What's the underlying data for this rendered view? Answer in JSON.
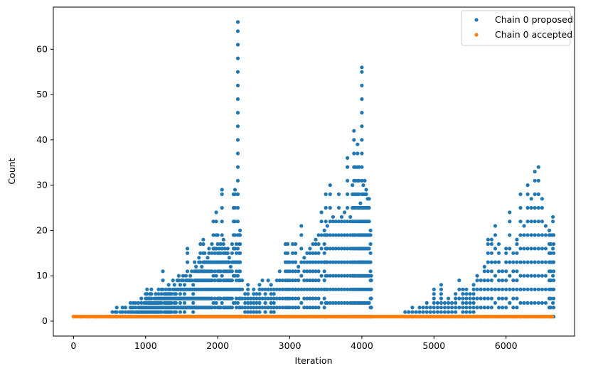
{
  "chart_data": {
    "type": "scatter",
    "title": "",
    "xlabel": "Iteration",
    "ylabel": "Count",
    "xlim": [
      -280,
      6950
    ],
    "ylim": [
      -3.3,
      69.3
    ],
    "xticks": [
      0,
      1000,
      2000,
      3000,
      4000,
      5000,
      6000
    ],
    "yticks": [
      0,
      10,
      20,
      30,
      40,
      50,
      60
    ],
    "xtick_labels": [
      "0",
      "1000",
      "2000",
      "3000",
      "4000",
      "5000",
      "6000"
    ],
    "ytick_labels": [
      "0",
      "10",
      "20",
      "30",
      "40",
      "50",
      "60"
    ],
    "grid": false,
    "legend_position": "top-right",
    "series": [
      {
        "name": "Chain 0 proposed",
        "color": "#1f77b4",
        "points": [
          [
            0,
            1
          ],
          [
            100,
            1
          ],
          [
            200,
            1
          ],
          [
            300,
            1
          ],
          [
            400,
            1
          ],
          [
            500,
            1
          ],
          [
            540,
            2
          ],
          [
            580,
            2
          ],
          [
            600,
            3
          ],
          [
            650,
            2
          ],
          [
            680,
            3
          ],
          [
            720,
            3
          ],
          [
            760,
            2
          ],
          [
            790,
            4
          ],
          [
            810,
            3
          ],
          [
            830,
            4
          ],
          [
            860,
            4
          ],
          [
            880,
            2
          ],
          [
            900,
            4
          ],
          [
            920,
            3
          ],
          [
            940,
            5
          ],
          [
            960,
            3
          ],
          [
            980,
            4
          ],
          [
            1000,
            6
          ],
          [
            1020,
            7
          ],
          [
            1040,
            5
          ],
          [
            1060,
            6
          ],
          [
            1080,
            7
          ],
          [
            1100,
            4
          ],
          [
            1120,
            5
          ],
          [
            1140,
            6
          ],
          [
            1160,
            5
          ],
          [
            1180,
            7
          ],
          [
            1200,
            5
          ],
          [
            1220,
            7
          ],
          [
            1240,
            11
          ],
          [
            1260,
            6
          ],
          [
            1280,
            7
          ],
          [
            1300,
            6
          ],
          [
            1320,
            8
          ],
          [
            1340,
            7
          ],
          [
            1360,
            6
          ],
          [
            1380,
            9
          ],
          [
            1400,
            8
          ],
          [
            1420,
            7
          ],
          [
            1440,
            9
          ],
          [
            1460,
            10
          ],
          [
            1480,
            8
          ],
          [
            1500,
            9
          ],
          [
            1520,
            10
          ],
          [
            1540,
            8
          ],
          [
            1560,
            10
          ],
          [
            1580,
            16
          ],
          [
            1600,
            9
          ],
          [
            1620,
            10
          ],
          [
            1640,
            11
          ],
          [
            1660,
            8
          ],
          [
            1680,
            13
          ],
          [
            1700,
            12
          ],
          [
            1720,
            11
          ],
          [
            1740,
            14
          ],
          [
            1760,
            17
          ],
          [
            1780,
            12
          ],
          [
            1800,
            18
          ],
          [
            1820,
            15
          ],
          [
            1840,
            13
          ],
          [
            1860,
            14
          ],
          [
            1880,
            16
          ],
          [
            1900,
            13
          ],
          [
            1920,
            17
          ],
          [
            1940,
            22
          ],
          [
            1960,
            16
          ],
          [
            1980,
            24
          ],
          [
            2000,
            19
          ],
          [
            2020,
            16
          ],
          [
            2040,
            17
          ],
          [
            2060,
            29
          ],
          [
            2080,
            18
          ],
          [
            2100,
            16
          ],
          [
            2120,
            15
          ],
          [
            2140,
            16
          ],
          [
            2160,
            14
          ],
          [
            2180,
            12
          ],
          [
            2200,
            17
          ],
          [
            2220,
            28
          ],
          [
            2240,
            29
          ],
          [
            2260,
            17
          ],
          [
            2280,
            66
          ],
          [
            2300,
            19
          ],
          [
            2310,
            20
          ],
          [
            2340,
            9
          ],
          [
            2380,
            6
          ],
          [
            2420,
            8
          ],
          [
            2460,
            5
          ],
          [
            2500,
            7
          ],
          [
            2540,
            6
          ],
          [
            2580,
            8
          ],
          [
            2620,
            9
          ],
          [
            2660,
            7
          ],
          [
            2700,
            9
          ],
          [
            2740,
            8
          ],
          [
            2780,
            7
          ],
          [
            2820,
            9
          ],
          [
            2860,
            11
          ],
          [
            2900,
            9
          ],
          [
            2940,
            17
          ],
          [
            2970,
            17
          ],
          [
            3000,
            13
          ],
          [
            3040,
            17
          ],
          [
            3080,
            17
          ],
          [
            3120,
            12
          ],
          [
            3160,
            21
          ],
          [
            3200,
            14
          ],
          [
            3240,
            15
          ],
          [
            3280,
            16
          ],
          [
            3320,
            17
          ],
          [
            3360,
            18
          ],
          [
            3400,
            19
          ],
          [
            3440,
            24
          ],
          [
            3480,
            20
          ],
          [
            3500,
            28
          ],
          [
            3520,
            21
          ],
          [
            3560,
            30
          ],
          [
            3600,
            23
          ],
          [
            3640,
            22
          ],
          [
            3680,
            28
          ],
          [
            3720,
            23
          ],
          [
            3760,
            24
          ],
          [
            3800,
            36
          ],
          [
            3840,
            23
          ],
          [
            3870,
            30
          ],
          [
            3890,
            42
          ],
          [
            3910,
            34
          ],
          [
            3940,
            39
          ],
          [
            3960,
            34
          ],
          [
            3980,
            26
          ],
          [
            4000,
            56
          ],
          [
            4020,
            30
          ],
          [
            4040,
            31
          ],
          [
            4060,
            29
          ],
          [
            4080,
            27
          ],
          [
            4100,
            27
          ],
          [
            4120,
            20
          ],
          [
            4130,
            10
          ],
          [
            4600,
            2
          ],
          [
            4650,
            2
          ],
          [
            4700,
            3
          ],
          [
            4750,
            2
          ],
          [
            4800,
            3
          ],
          [
            4850,
            3
          ],
          [
            4900,
            4
          ],
          [
            4950,
            3
          ],
          [
            5000,
            7
          ],
          [
            5050,
            4
          ],
          [
            5100,
            8
          ],
          [
            5150,
            4
          ],
          [
            5200,
            5
          ],
          [
            5250,
            4
          ],
          [
            5300,
            6
          ],
          [
            5350,
            9
          ],
          [
            5400,
            7
          ],
          [
            5450,
            7
          ],
          [
            5500,
            6
          ],
          [
            5550,
            8
          ],
          [
            5600,
            10
          ],
          [
            5650,
            9
          ],
          [
            5700,
            12
          ],
          [
            5750,
            18
          ],
          [
            5800,
            18
          ],
          [
            5850,
            21
          ],
          [
            5900,
            17
          ],
          [
            5950,
            11
          ],
          [
            6000,
            16
          ],
          [
            6050,
            24
          ],
          [
            6100,
            15
          ],
          [
            6150,
            18
          ],
          [
            6200,
            28
          ],
          [
            6250,
            21
          ],
          [
            6300,
            30
          ],
          [
            6350,
            27
          ],
          [
            6400,
            33
          ],
          [
            6450,
            34
          ],
          [
            6500,
            27
          ],
          [
            6550,
            21
          ],
          [
            6600,
            20
          ],
          [
            6620,
            19
          ],
          [
            6650,
            23
          ],
          [
            6660,
            19
          ]
        ]
      },
      {
        "name": "Chain 0 accepted",
        "color": "#ff7f0e",
        "points": [
          [
            0,
            1
          ],
          [
            6650,
            1
          ]
        ]
      }
    ]
  }
}
